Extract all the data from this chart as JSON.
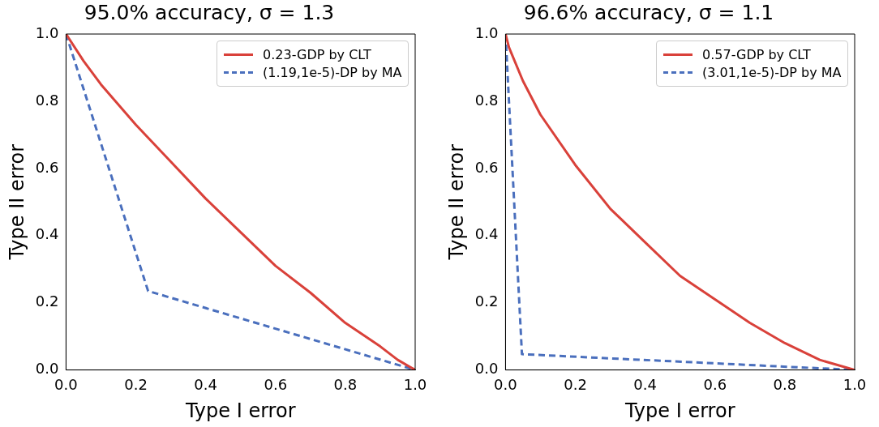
{
  "chart_data": [
    {
      "type": "line",
      "title": "95.0% accuracy, σ = 1.3",
      "xlabel": "Type I error",
      "ylabel": "Type II error",
      "xlim": [
        0,
        1
      ],
      "ylim": [
        0,
        1
      ],
      "xticks": [
        {
          "value": 0,
          "label": "0.0"
        },
        {
          "value": 0.2,
          "label": "0.2"
        },
        {
          "value": 0.4,
          "label": "0.4"
        },
        {
          "value": 0.6,
          "label": "0.6"
        },
        {
          "value": 0.8,
          "label": "0.8"
        },
        {
          "value": 1,
          "label": "1.0"
        }
      ],
      "yticks": [
        {
          "value": 0,
          "label": "0.0"
        },
        {
          "value": 0.2,
          "label": "0.2"
        },
        {
          "value": 0.4,
          "label": "0.4"
        },
        {
          "value": 0.6,
          "label": "0.6"
        },
        {
          "value": 0.8,
          "label": "0.8"
        },
        {
          "value": 1,
          "label": "1.0"
        }
      ],
      "legend": "top right",
      "marker": "none",
      "grid": false,
      "series": [
        {
          "name": "0.23-GDP by CLT",
          "color": "#d9413a",
          "line_style": "solid",
          "x": [
            0,
            0.05,
            0.1,
            0.2,
            0.3,
            0.4,
            0.5,
            0.6,
            0.7,
            0.8,
            0.9,
            0.95,
            1
          ],
          "values": [
            1,
            0.92,
            0.85,
            0.73,
            0.62,
            0.51,
            0.41,
            0.31,
            0.23,
            0.14,
            0.07,
            0.03,
            0
          ]
        },
        {
          "name": "(1.19,1e-5)-DP by MA",
          "color": "#4a6fbd",
          "line_style": "dashed",
          "x": [
            0,
            0.235,
            1
          ],
          "values": [
            1,
            0.235,
            0
          ]
        }
      ]
    },
    {
      "type": "line",
      "title": "96.6% accuracy, σ = 1.1",
      "xlabel": "Type I error",
      "ylabel": "Type II error",
      "xlim": [
        0,
        1
      ],
      "ylim": [
        0,
        1
      ],
      "xticks": [
        {
          "value": 0,
          "label": "0.0"
        },
        {
          "value": 0.2,
          "label": "0.2"
        },
        {
          "value": 0.4,
          "label": "0.4"
        },
        {
          "value": 0.6,
          "label": "0.6"
        },
        {
          "value": 0.8,
          "label": "0.8"
        },
        {
          "value": 1,
          "label": "1.0"
        }
      ],
      "yticks": [
        {
          "value": 0,
          "label": "0.0"
        },
        {
          "value": 0.2,
          "label": "0.2"
        },
        {
          "value": 0.4,
          "label": "0.4"
        },
        {
          "value": 0.6,
          "label": "0.6"
        },
        {
          "value": 0.8,
          "label": "0.8"
        },
        {
          "value": 1,
          "label": "1.0"
        }
      ],
      "legend": "top right",
      "marker": "none",
      "grid": false,
      "series": [
        {
          "name": "0.57-GDP by CLT",
          "color": "#d9413a",
          "line_style": "solid",
          "x": [
            0,
            0.01,
            0.05,
            0.1,
            0.2,
            0.3,
            0.4,
            0.5,
            0.6,
            0.7,
            0.8,
            0.9,
            1
          ],
          "values": [
            1,
            0.96,
            0.86,
            0.76,
            0.61,
            0.48,
            0.38,
            0.28,
            0.21,
            0.14,
            0.08,
            0.03,
            0
          ]
        },
        {
          "name": "(3.01,1e-5)-DP by MA",
          "color": "#4a6fbd",
          "line_style": "dashed",
          "x": [
            0,
            0.047,
            1
          ],
          "values": [
            1,
            0.047,
            0
          ]
        }
      ]
    }
  ]
}
